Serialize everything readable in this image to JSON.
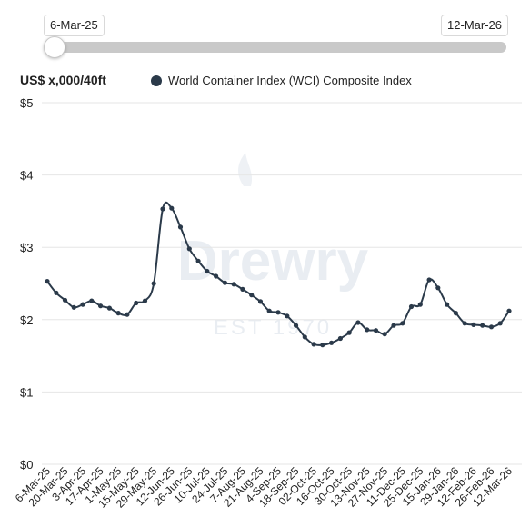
{
  "slider": {
    "start_label": "6-Mar-25",
    "end_label": "12-Mar-26"
  },
  "unit_label": "US$ x,000/40ft",
  "legend_label": "World Container Index (WCI) Composite Index",
  "watermark": {
    "brand": "Drewry",
    "tagline": "EST 1970"
  },
  "colors": {
    "series": "#2b3a4a",
    "grid": "#e6e6e6",
    "track": "#c9c9c9"
  },
  "chart_data": {
    "type": "line",
    "ylim": [
      0,
      5
    ],
    "yticks": [
      "$0",
      "$1",
      "$2",
      "$3",
      "$4",
      "$5"
    ],
    "x_tick_labels": [
      "6-Mar-25",
      "20-Mar-25",
      "3-Apr-25",
      "17-Apr-25",
      "1-May-25",
      "15-May-25",
      "29-May-25",
      "12-Jun-25",
      "26-Jun-25",
      "10-Jul-25",
      "24-Jul-25",
      "7-Aug-25",
      "21-Aug-25",
      "4-Sep-25",
      "18-Sep-25",
      "02-Oct-25",
      "16-Oct-25",
      "30-Oct-25",
      "13-Nov-25",
      "27-Nov-25",
      "11-Dec-25",
      "25-Dec-25",
      "15-Jan-26",
      "29-Jan-26",
      "12-Feb-26",
      "26-Feb-26",
      "12-Mar-26"
    ],
    "grid": true,
    "series": [
      {
        "name": "World Container Index (WCI) Composite Index",
        "x": [
          "6-Mar-25",
          "13-Mar-25",
          "20-Mar-25",
          "27-Mar-25",
          "3-Apr-25",
          "10-Apr-25",
          "17-Apr-25",
          "24-Apr-25",
          "1-May-25",
          "8-May-25",
          "15-May-25",
          "22-May-25",
          "29-May-25",
          "5-Jun-25",
          "12-Jun-25",
          "19-Jun-25",
          "26-Jun-25",
          "3-Jul-25",
          "10-Jul-25",
          "17-Jul-25",
          "24-Jul-25",
          "31-Jul-25",
          "7-Aug-25",
          "14-Aug-25",
          "21-Aug-25",
          "28-Aug-25",
          "4-Sep-25",
          "11-Sep-25",
          "18-Sep-25",
          "25-Sep-25",
          "02-Oct-25",
          "9-Oct-25",
          "16-Oct-25",
          "23-Oct-25",
          "30-Oct-25",
          "6-Nov-25",
          "13-Nov-25",
          "20-Nov-25",
          "27-Nov-25",
          "4-Dec-25",
          "11-Dec-25",
          "18-Dec-25",
          "25-Dec-25",
          "8-Jan-26",
          "15-Jan-26",
          "22-Jan-26",
          "29-Jan-26",
          "5-Feb-26",
          "12-Feb-26",
          "19-Feb-26",
          "26-Feb-26",
          "5-Mar-26",
          "12-Mar-26"
        ],
        "values": [
          2.53,
          2.37,
          2.27,
          2.17,
          2.21,
          2.26,
          2.19,
          2.16,
          2.09,
          2.07,
          2.23,
          2.26,
          2.5,
          3.53,
          3.54,
          3.28,
          2.98,
          2.81,
          2.67,
          2.6,
          2.51,
          2.49,
          2.42,
          2.34,
          2.25,
          2.12,
          2.1,
          2.05,
          1.92,
          1.76,
          1.66,
          1.65,
          1.68,
          1.74,
          1.82,
          1.96,
          1.86,
          1.85,
          1.8,
          1.92,
          1.95,
          2.18,
          2.21,
          2.55,
          2.44,
          2.21,
          2.09,
          1.95,
          1.93,
          1.92,
          1.9,
          1.95,
          2.12
        ]
      }
    ]
  }
}
